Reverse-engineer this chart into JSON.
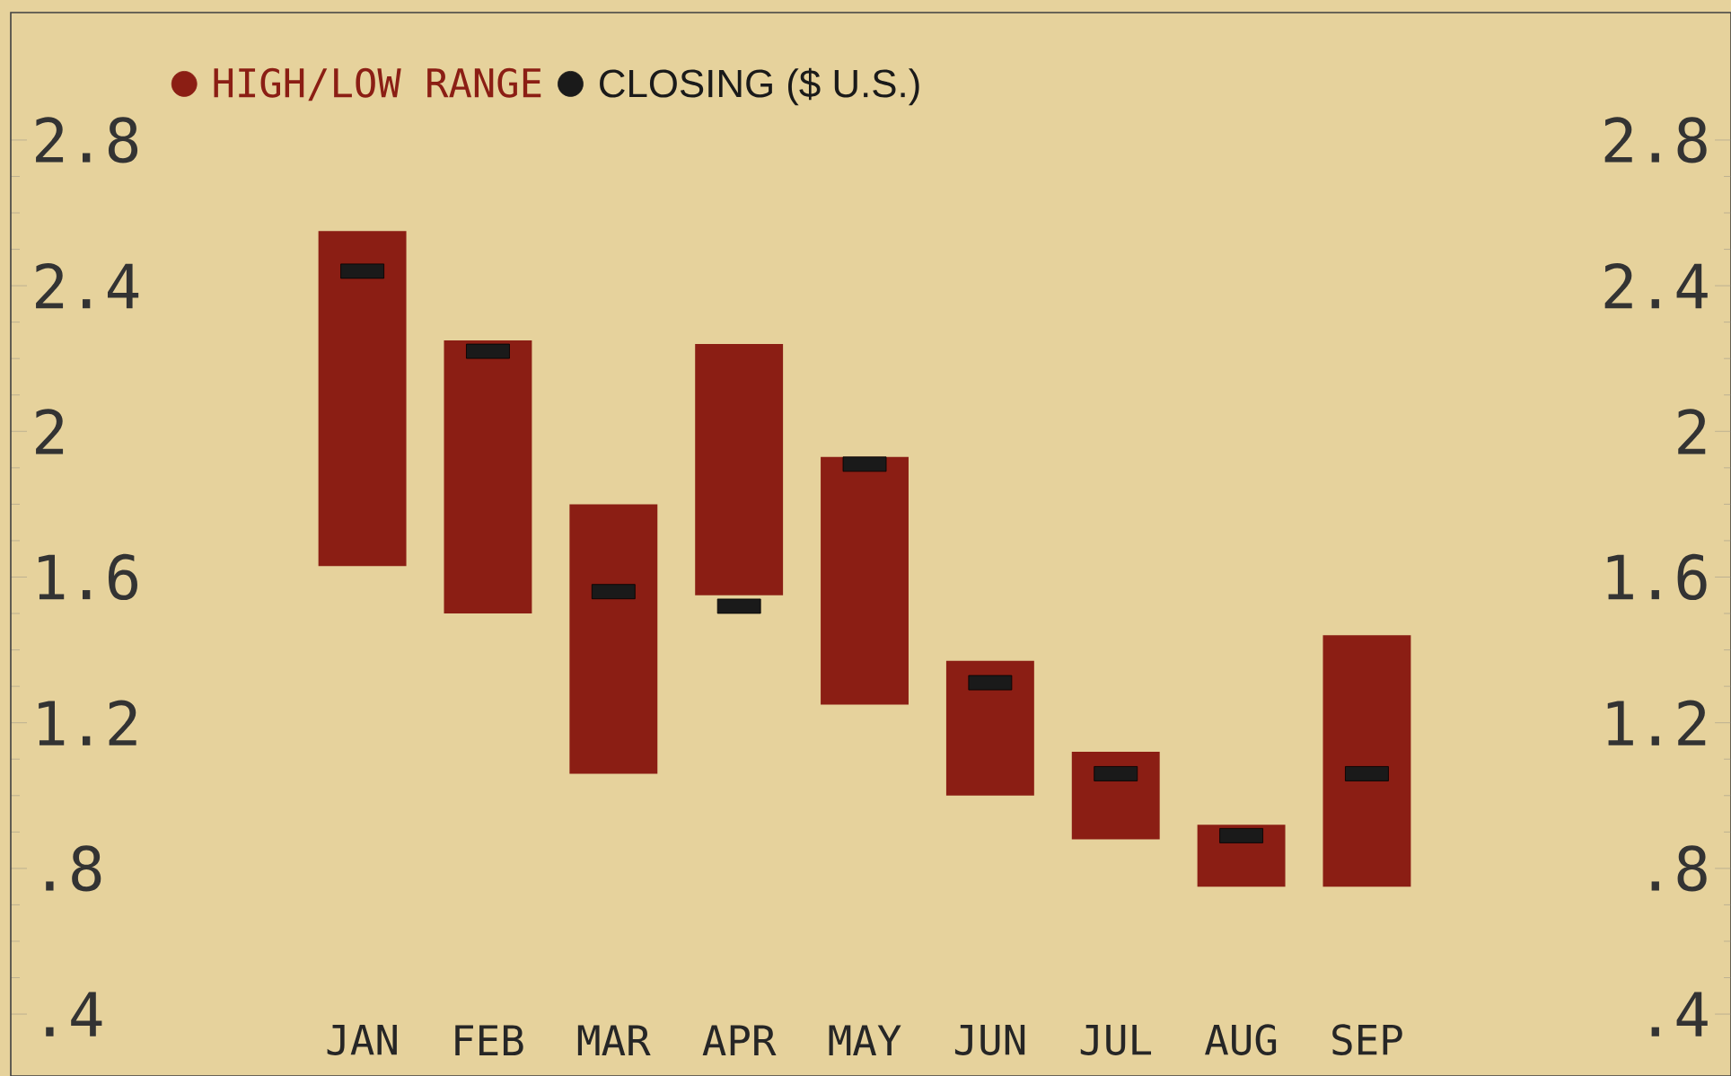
{
  "chart_data": {
    "type": "bar",
    "categories": [
      "JAN",
      "FEB",
      "MAR",
      "APR",
      "MAY",
      "JUN",
      "JUL",
      "AUG",
      "SEP"
    ],
    "series": [
      {
        "name": "HIGH/LOW RANGE",
        "type": "bar",
        "color": "#8b1e14",
        "base": [
          1.63,
          1.5,
          1.06,
          1.55,
          1.25,
          1.0,
          0.88,
          0.75,
          0.75
        ],
        "values": [
          0.92,
          0.75,
          0.74,
          0.69,
          0.68,
          0.37,
          0.24,
          0.17,
          0.69
        ]
      },
      {
        "name": "CLOSING ($ U.S.)",
        "type": "scatter",
        "marker": "square",
        "color": "#1a1a1a",
        "values": [
          2.44,
          2.22,
          1.56,
          1.52,
          1.91,
          1.31,
          1.06,
          0.89,
          1.06
        ]
      }
    ],
    "ylim": [
      0.23,
      3.15
    ],
    "yticks": [
      {
        "value": 0.4,
        "label": ".4"
      },
      {
        "value": 0.8,
        "label": ".8"
      },
      1.2,
      1.6,
      2,
      2.4,
      2.8
    ],
    "y2lim": [
      0.23,
      3.15
    ],
    "y2ticks": [
      {
        "value": 0.4,
        "label": ".4"
      },
      {
        "value": 0.8,
        "label": ".8"
      },
      1.2,
      1.6,
      2,
      2.4,
      2.8
    ],
    "legend": "top left"
  }
}
